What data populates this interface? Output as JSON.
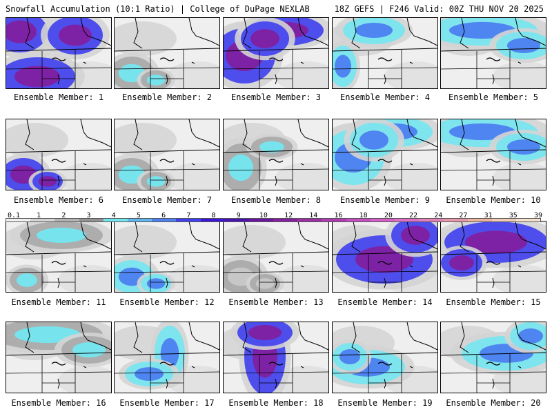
{
  "header": {
    "left": "Snowfall Accumulation (10:1 Ratio) | College of DuPage NEXLAB",
    "right": "18Z GEFS | F246 Valid: 00Z THU NOV 20 2025"
  },
  "panels": [
    {
      "label": "Ensemble Member: 1",
      "snow_intensity": "heavy",
      "snow_region": "northwest-west"
    },
    {
      "label": "Ensemble Member: 2",
      "snow_intensity": "light",
      "snow_region": "southwest"
    },
    {
      "label": "Ensemble Member: 3",
      "snow_intensity": "heavy",
      "snow_region": "west-north"
    },
    {
      "label": "Ensemble Member: 4",
      "snow_intensity": "moderate",
      "snow_region": "north-west"
    },
    {
      "label": "Ensemble Member: 5",
      "snow_intensity": "moderate",
      "snow_region": "north"
    },
    {
      "label": "Ensemble Member: 6",
      "snow_intensity": "heavy",
      "snow_region": "southwest"
    },
    {
      "label": "Ensemble Member: 7",
      "snow_intensity": "light",
      "snow_region": "southwest"
    },
    {
      "label": "Ensemble Member: 8",
      "snow_intensity": "light",
      "snow_region": "west"
    },
    {
      "label": "Ensemble Member: 9",
      "snow_intensity": "moderate",
      "snow_region": "west-north"
    },
    {
      "label": "Ensemble Member: 10",
      "snow_intensity": "moderate",
      "snow_region": "north"
    },
    {
      "label": "Ensemble Member: 11",
      "snow_intensity": "light",
      "snow_region": "north-southwest"
    },
    {
      "label": "Ensemble Member: 12",
      "snow_intensity": "moderate",
      "snow_region": "southwest"
    },
    {
      "label": "Ensemble Member: 13",
      "snow_intensity": "trace",
      "snow_region": "southwest"
    },
    {
      "label": "Ensemble Member: 14",
      "snow_intensity": "heavy",
      "snow_region": "central-east"
    },
    {
      "label": "Ensemble Member: 15",
      "snow_intensity": "heavy",
      "snow_region": "north-central"
    },
    {
      "label": "Ensemble Member: 16",
      "snow_intensity": "light",
      "snow_region": "north"
    },
    {
      "label": "Ensemble Member: 17",
      "snow_intensity": "moderate",
      "snow_region": "central-diagonal"
    },
    {
      "label": "Ensemble Member: 18",
      "snow_intensity": "heavy",
      "snow_region": "central"
    },
    {
      "label": "Ensemble Member: 19",
      "snow_intensity": "moderate",
      "snow_region": "west-central"
    },
    {
      "label": "Ensemble Member: 20",
      "snow_intensity": "moderate",
      "snow_region": "east-central"
    }
  ],
  "colorbar": {
    "labels": [
      "0.1",
      "1",
      "2",
      "3",
      "4",
      "5",
      "6",
      "7",
      "8",
      "9",
      "10",
      "12",
      "14",
      "16",
      "18",
      "20",
      "22",
      "24",
      "27",
      "31",
      "35",
      "39"
    ],
    "colors": [
      "#f0f0f0",
      "#d4d4d4",
      "#b4b4b4",
      "#939393",
      "#74e6f0",
      "#62b6f0",
      "#4d80f0",
      "#3f3ff0",
      "#3b16d8",
      "#4a12b0",
      "#6a16a0",
      "#86209f",
      "#9c2ea6",
      "#b03cb4",
      "#c64ec2",
      "#d660c8",
      "#e070c8",
      "#e483bb",
      "#e898aa",
      "#ecb49c",
      "#f0ccb6",
      "#f5e2cc"
    ]
  }
}
